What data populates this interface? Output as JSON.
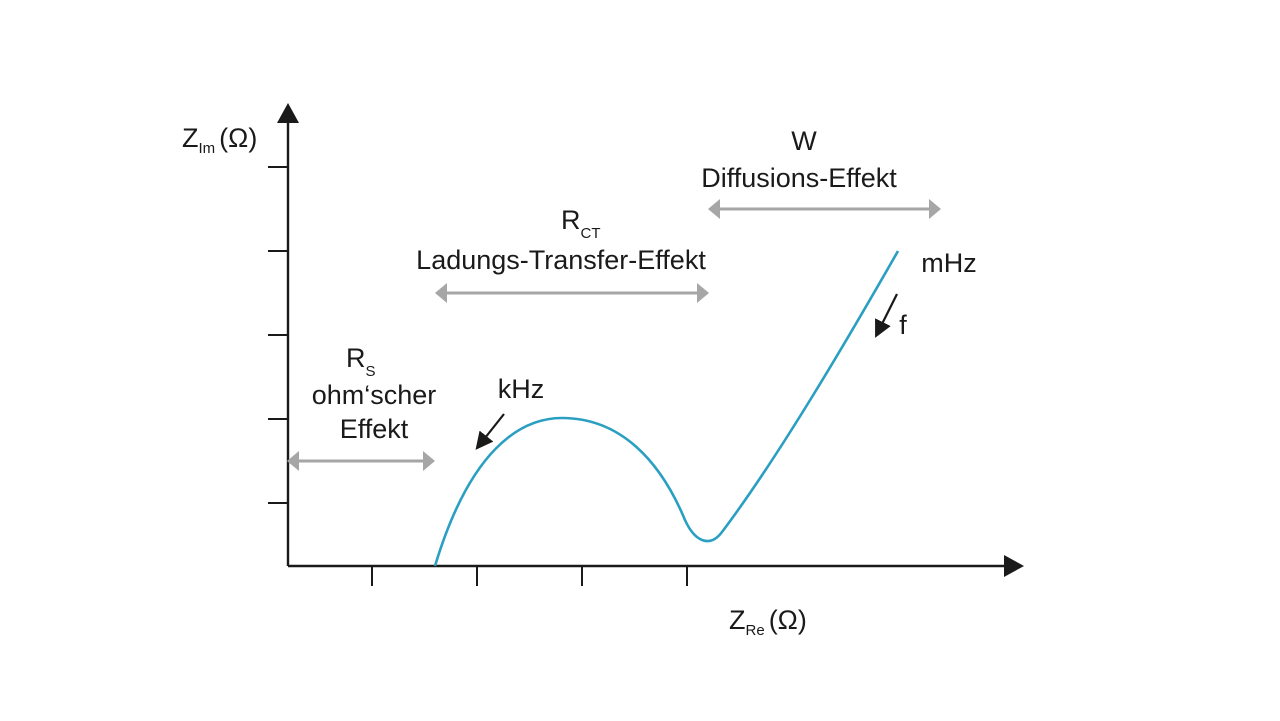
{
  "axes": {
    "y_label": {
      "main": "Z",
      "sub": "Im",
      "unit": "(Ω)"
    },
    "x_label": {
      "main": "Z",
      "sub": "Re",
      "unit": "(Ω)"
    }
  },
  "regions": {
    "rs": {
      "symbol": "R",
      "symbol_sub": "S",
      "line1": "ohm‘scher",
      "line2": "Effekt"
    },
    "rct": {
      "symbol": "R",
      "symbol_sub": "CT",
      "line1": "Ladungs-Transfer-Effekt"
    },
    "w": {
      "symbol": "W",
      "line1": "Diffusions-Effekt"
    }
  },
  "annotations": {
    "khz": "kHz",
    "mhz": "mHz",
    "f": "f"
  },
  "colors": {
    "curve": "#2a9fc2",
    "axis": "#1a1a1a",
    "range_arrow": "#a6a6a6"
  }
}
